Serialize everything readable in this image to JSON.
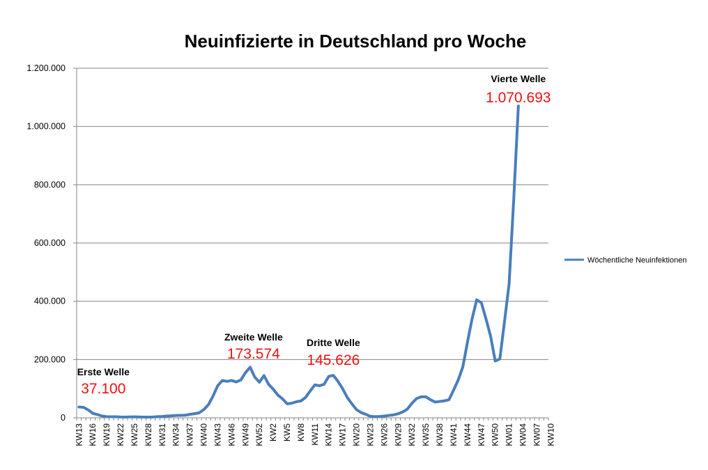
{
  "chart_data": {
    "type": "line",
    "title": "Neuinfizierte in Deutschland pro Woche",
    "xlabel": "",
    "ylabel": "",
    "ylim": [
      0,
      1200000
    ],
    "yticks": [
      0,
      200000,
      400000,
      600000,
      800000,
      1000000,
      1200000
    ],
    "ytick_labels": [
      "0",
      "200.000",
      "400.000",
      "600.000",
      "800.000",
      "1.000.000",
      "1.200.000"
    ],
    "grid": true,
    "legend_position": "right",
    "x_tick_labels": [
      "KW13",
      "KW16",
      "KW19",
      "KW22",
      "KW25",
      "KW28",
      "KW31",
      "KW34",
      "KW37",
      "KW40",
      "KW43",
      "KW46",
      "KW49",
      "KW52",
      "KW2",
      "KW5",
      "KW8",
      "KW11",
      "KW14",
      "KW17",
      "KW20",
      "KW23",
      "KW26",
      "KW29",
      "KW32",
      "KW35",
      "KW38",
      "KW41",
      "KW44",
      "KW47",
      "KW50",
      "KW01",
      "KW04",
      "KW07",
      "KW10"
    ],
    "series": [
      {
        "name": "Wöchentliche Neuinfektionen",
        "color": "#4a7ebb",
        "values": [
          37100,
          36000,
          27000,
          15000,
          11000,
          6000,
          4000,
          3500,
          3500,
          2800,
          2500,
          3000,
          3200,
          2800,
          2500,
          2300,
          2800,
          3800,
          4500,
          6000,
          7000,
          8000,
          8500,
          9000,
          12000,
          14000,
          17000,
          28000,
          45000,
          75000,
          110000,
          128000,
          125000,
          128000,
          123000,
          130000,
          155000,
          173574,
          140000,
          122000,
          145000,
          115000,
          98000,
          78000,
          65000,
          48000,
          50000,
          55000,
          58000,
          70000,
          92000,
          113000,
          110000,
          115000,
          142000,
          145626,
          125000,
          100000,
          70000,
          48000,
          28000,
          18000,
          12000,
          5000,
          4000,
          4500,
          6000,
          8000,
          10000,
          14000,
          20000,
          30000,
          50000,
          66000,
          72000,
          72000,
          62000,
          54000,
          56000,
          58000,
          62000,
          95000,
          130000,
          175000,
          260000,
          340000,
          405000,
          395000,
          340000,
          280000,
          195000,
          202000,
          330000,
          460000,
          750000,
          1070693
        ]
      }
    ],
    "annotations": [
      {
        "label": "Erste Welle",
        "value": "37.100",
        "index": 0
      },
      {
        "label": "Zweite Welle",
        "value": "173.574",
        "index": 37
      },
      {
        "label": "Dritte Welle",
        "value": "145.626",
        "index": 55
      },
      {
        "label": "Vierte Welle",
        "value": "1.070.693",
        "index": 95
      }
    ]
  }
}
